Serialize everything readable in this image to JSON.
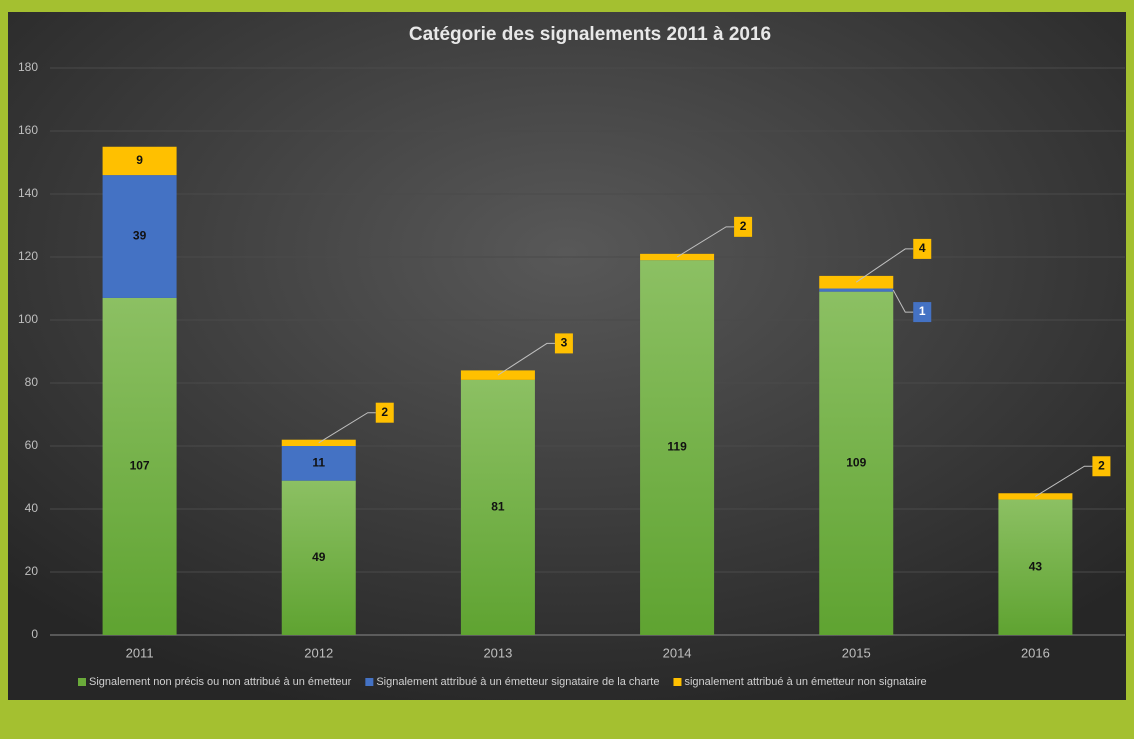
{
  "chart_data": {
    "type": "stacked_bar",
    "title": "Catégorie des signalements 2011 à 2016",
    "categories": [
      "2011",
      "2012",
      "2013",
      "2014",
      "2015",
      "2016"
    ],
    "series": [
      {
        "name": "Signalement non précis ou non attribué à un émetteur",
        "color": "#6aaa3a",
        "values": [
          107,
          49,
          81,
          119,
          109,
          43
        ]
      },
      {
        "name": "Signalement attribué à un émetteur signataire de la charte",
        "color": "#4472c4",
        "values": [
          39,
          11,
          null,
          null,
          1,
          null
        ]
      },
      {
        "name": "signalement attribué à un émetteur non signataire",
        "color": "#ffc000",
        "values": [
          9,
          2,
          3,
          2,
          4,
          2
        ]
      }
    ],
    "ylim": [
      0,
      180
    ],
    "yticks": [
      0,
      20,
      40,
      60,
      80,
      100,
      120,
      140,
      160,
      180
    ],
    "grid": true,
    "legend": "bottom"
  }
}
